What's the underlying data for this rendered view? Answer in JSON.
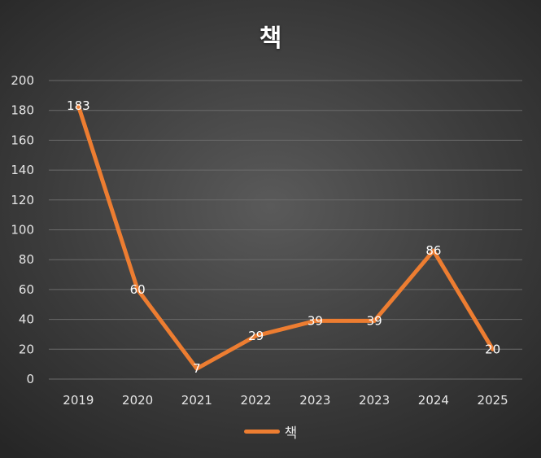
{
  "chart_data": {
    "type": "line",
    "title": "책",
    "categories": [
      "2019",
      "2020",
      "2021",
      "2022",
      "2023",
      "2023",
      "2024",
      "2025"
    ],
    "series": [
      {
        "name": "책",
        "values": [
          183,
          60,
          7,
          29,
          39,
          39,
          86,
          20
        ],
        "color": "#ed7d31"
      }
    ],
    "ylim": [
      0,
      200
    ],
    "yticks": [
      "0",
      "20",
      "40",
      "60",
      "80",
      "100",
      "120",
      "140",
      "160",
      "180",
      "200"
    ],
    "grid": true,
    "legend_position": "bottom",
    "data_labels": true
  },
  "colors": {
    "gridline": "#6a6a6a",
    "text": "#e6e6e6"
  }
}
